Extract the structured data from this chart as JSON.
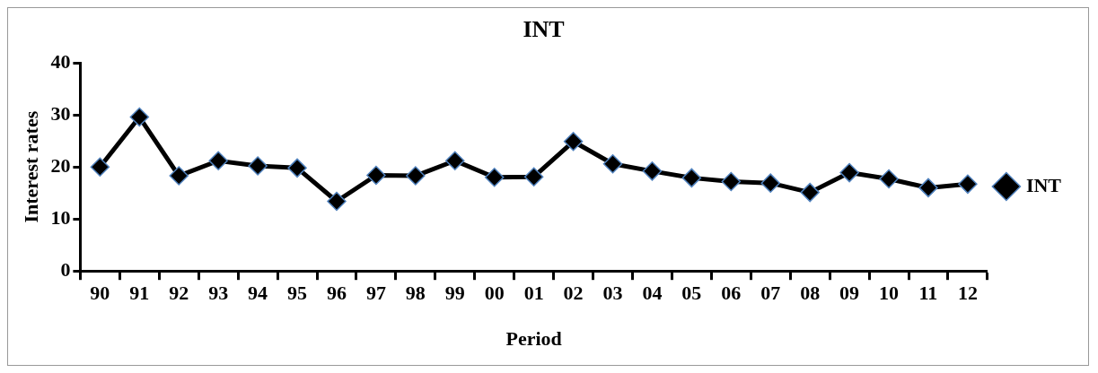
{
  "chart_data": {
    "type": "line",
    "title": "INT",
    "xlabel": "Period",
    "ylabel": "Interest rates",
    "categories": [
      "90",
      "91",
      "92",
      "93",
      "94",
      "95",
      "96",
      "97",
      "98",
      "99",
      "00",
      "01",
      "02",
      "03",
      "04",
      "05",
      "06",
      "07",
      "08",
      "09",
      "10",
      "11",
      "12"
    ],
    "series": [
      {
        "name": "INT",
        "color": "#000000",
        "values": [
          20.0,
          29.6,
          18.3,
          21.2,
          20.2,
          19.8,
          13.4,
          18.4,
          18.3,
          21.2,
          18.0,
          18.1,
          24.9,
          20.6,
          19.2,
          17.9,
          17.2,
          16.9,
          15.1,
          18.9,
          17.7,
          16.0,
          16.7
        ]
      }
    ],
    "ylim": [
      0,
      40
    ],
    "yticks": [
      0,
      10,
      20,
      30,
      40
    ],
    "grid": false,
    "legend": "right",
    "marker": "diamond",
    "line_style": "solid"
  }
}
